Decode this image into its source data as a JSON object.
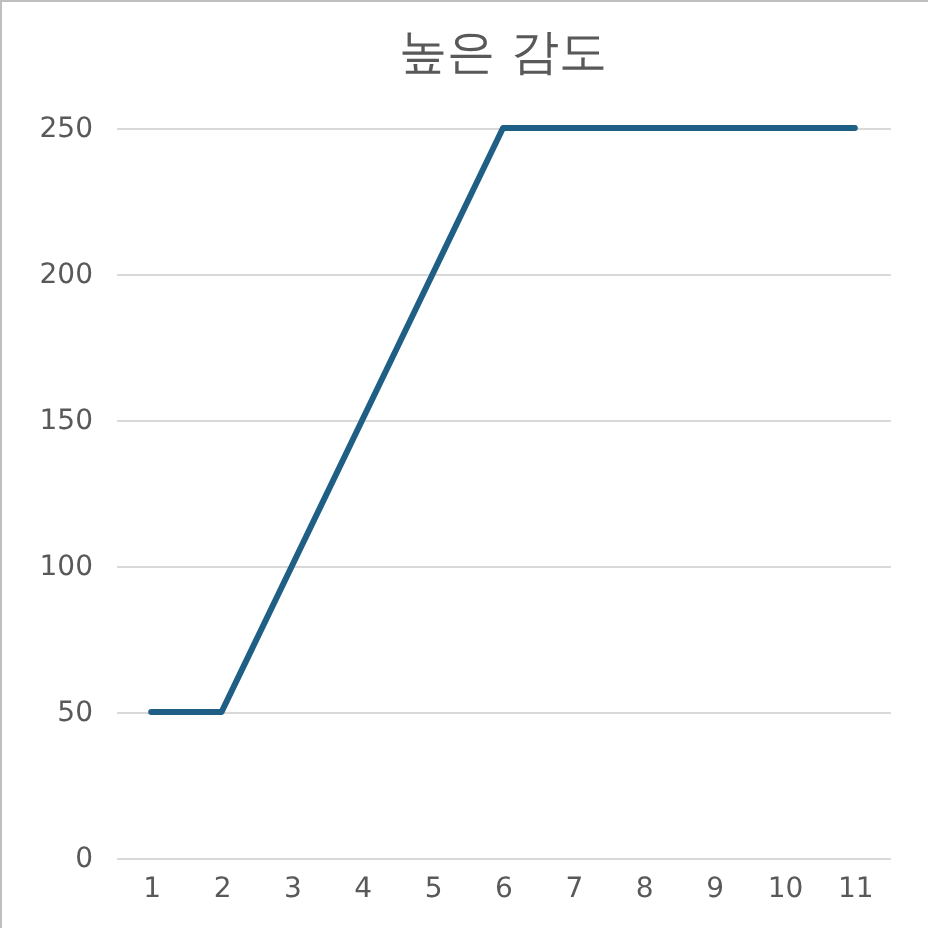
{
  "chart_data": {
    "type": "line",
    "title": "높은 감도",
    "categories": [
      "1",
      "2",
      "3",
      "4",
      "5",
      "6",
      "7",
      "8",
      "9",
      "10",
      "11"
    ],
    "series": [
      {
        "color": "#1f5f86",
        "values": [
          50,
          50,
          100,
          150,
          200,
          250,
          250,
          250,
          250,
          250,
          250
        ]
      }
    ],
    "ylim": [
      0,
      250
    ],
    "yticks": [
      0,
      50,
      100,
      150,
      200,
      250
    ],
    "grid": "y",
    "marker": "none",
    "line_style": "solid"
  }
}
